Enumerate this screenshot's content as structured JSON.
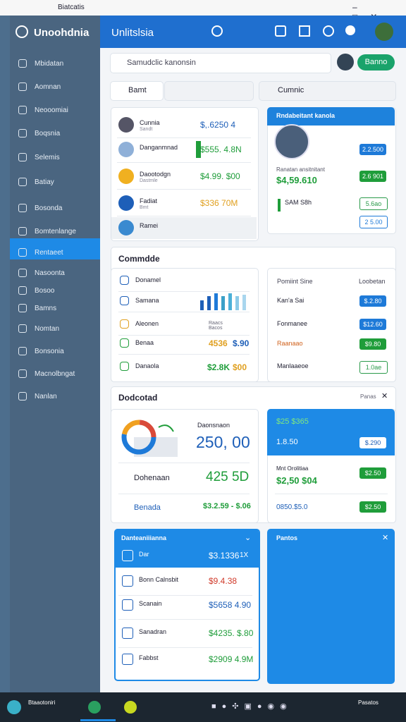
{
  "window": {
    "title": "Biatcatis"
  },
  "sidebar": {
    "title": "Unoohdnia",
    "items": [
      "Mbidatan",
      "Aomnan",
      "Neooomiai",
      "Boqsnia",
      "Selemis",
      "Batiay",
      "Bosonda",
      "Bomtenlange",
      "Rentaeet",
      "Nasoonta",
      "Bosoo",
      "Bamns",
      "Nomtan",
      "Bonsonia",
      "Macnolbngat",
      "Nanlan"
    ]
  },
  "header": {
    "title": "Unlitslsia"
  },
  "search": {
    "placeholder": "Samudclic kanonsin",
    "button": "Banno"
  },
  "filters": {
    "dropdown": "Bamt",
    "search": "Cumnic"
  },
  "list_card": {
    "rows": [
      {
        "name": "Cunnia",
        "sub": "Sandt",
        "value": "$,.6250 4"
      },
      {
        "name": "Danganmnad",
        "value": "$555. 4.8N"
      },
      {
        "name": "Daootodgn",
        "sub": "Dastmle",
        "value": "$4.99. $00"
      },
      {
        "name": "Fadiat",
        "sub": "Bmt",
        "value": "$336 70M"
      },
      {
        "name": "Ramei"
      }
    ]
  },
  "profile_card": {
    "title": "Rndabeitant kanola",
    "label": "Ranatan ansitnitant",
    "value": "$4,59.610",
    "note": "SAM S8h",
    "buttons": [
      "2.2.500",
      "2.6 901",
      "5.6ao",
      "2 5.00"
    ]
  },
  "section1": {
    "title": "Commdde",
    "left_rows": [
      "Donamel",
      "Samana",
      "Aleonen",
      "Benaa",
      "Danaola"
    ],
    "mini_label": "Raacs Bacos",
    "values": [
      "4536",
      "$.90",
      "$2.8K",
      "$00"
    ],
    "right_header": [
      "Pomiint Sine",
      "Loobetan"
    ],
    "right_rows": [
      "Kan'a Sai",
      "Fonmanee",
      "Raanaao",
      "Manlaaeoe"
    ],
    "right_buttons": [
      "$.2.80",
      "$12.60",
      "$9.80",
      "1.0ae"
    ]
  },
  "section2": {
    "title": "Dodcotad",
    "action": "Panas",
    "donut_label": "Daonsnaon",
    "donut_value": "250, 00",
    "rows": [
      {
        "name": "Dohenaan",
        "value": "425 5D"
      },
      {
        "name": "Benada",
        "value": "$3.2.59 - $.06"
      }
    ],
    "blue_value": "$25 $365",
    "blue_sub": "1.8.50",
    "blue_button": "$.290",
    "right_label": "Mnt Orolitiaa",
    "right_value": "$2,50 $04",
    "right_button": "$2.50",
    "right_value2": "0850.$5.0",
    "right_button2": "$2.50"
  },
  "bottom_card": {
    "title": "Danteaniiianna",
    "rows": [
      {
        "name": "Dar",
        "value": "$3.1336",
        "extra": "1X"
      },
      {
        "name": "Bonn Calnsbit",
        "value": "$9.4.38"
      },
      {
        "name": "Scanain",
        "value": "$5658 4.90"
      },
      {
        "name": "Sanadran",
        "value": "$4235. $.80"
      },
      {
        "name": "Fabbst",
        "value": "$2909 4.9M"
      }
    ]
  },
  "blue_card": {
    "title": "Pantos"
  },
  "taskbar": {
    "app": "Btaaotoniri",
    "clock": "Pasatos"
  }
}
